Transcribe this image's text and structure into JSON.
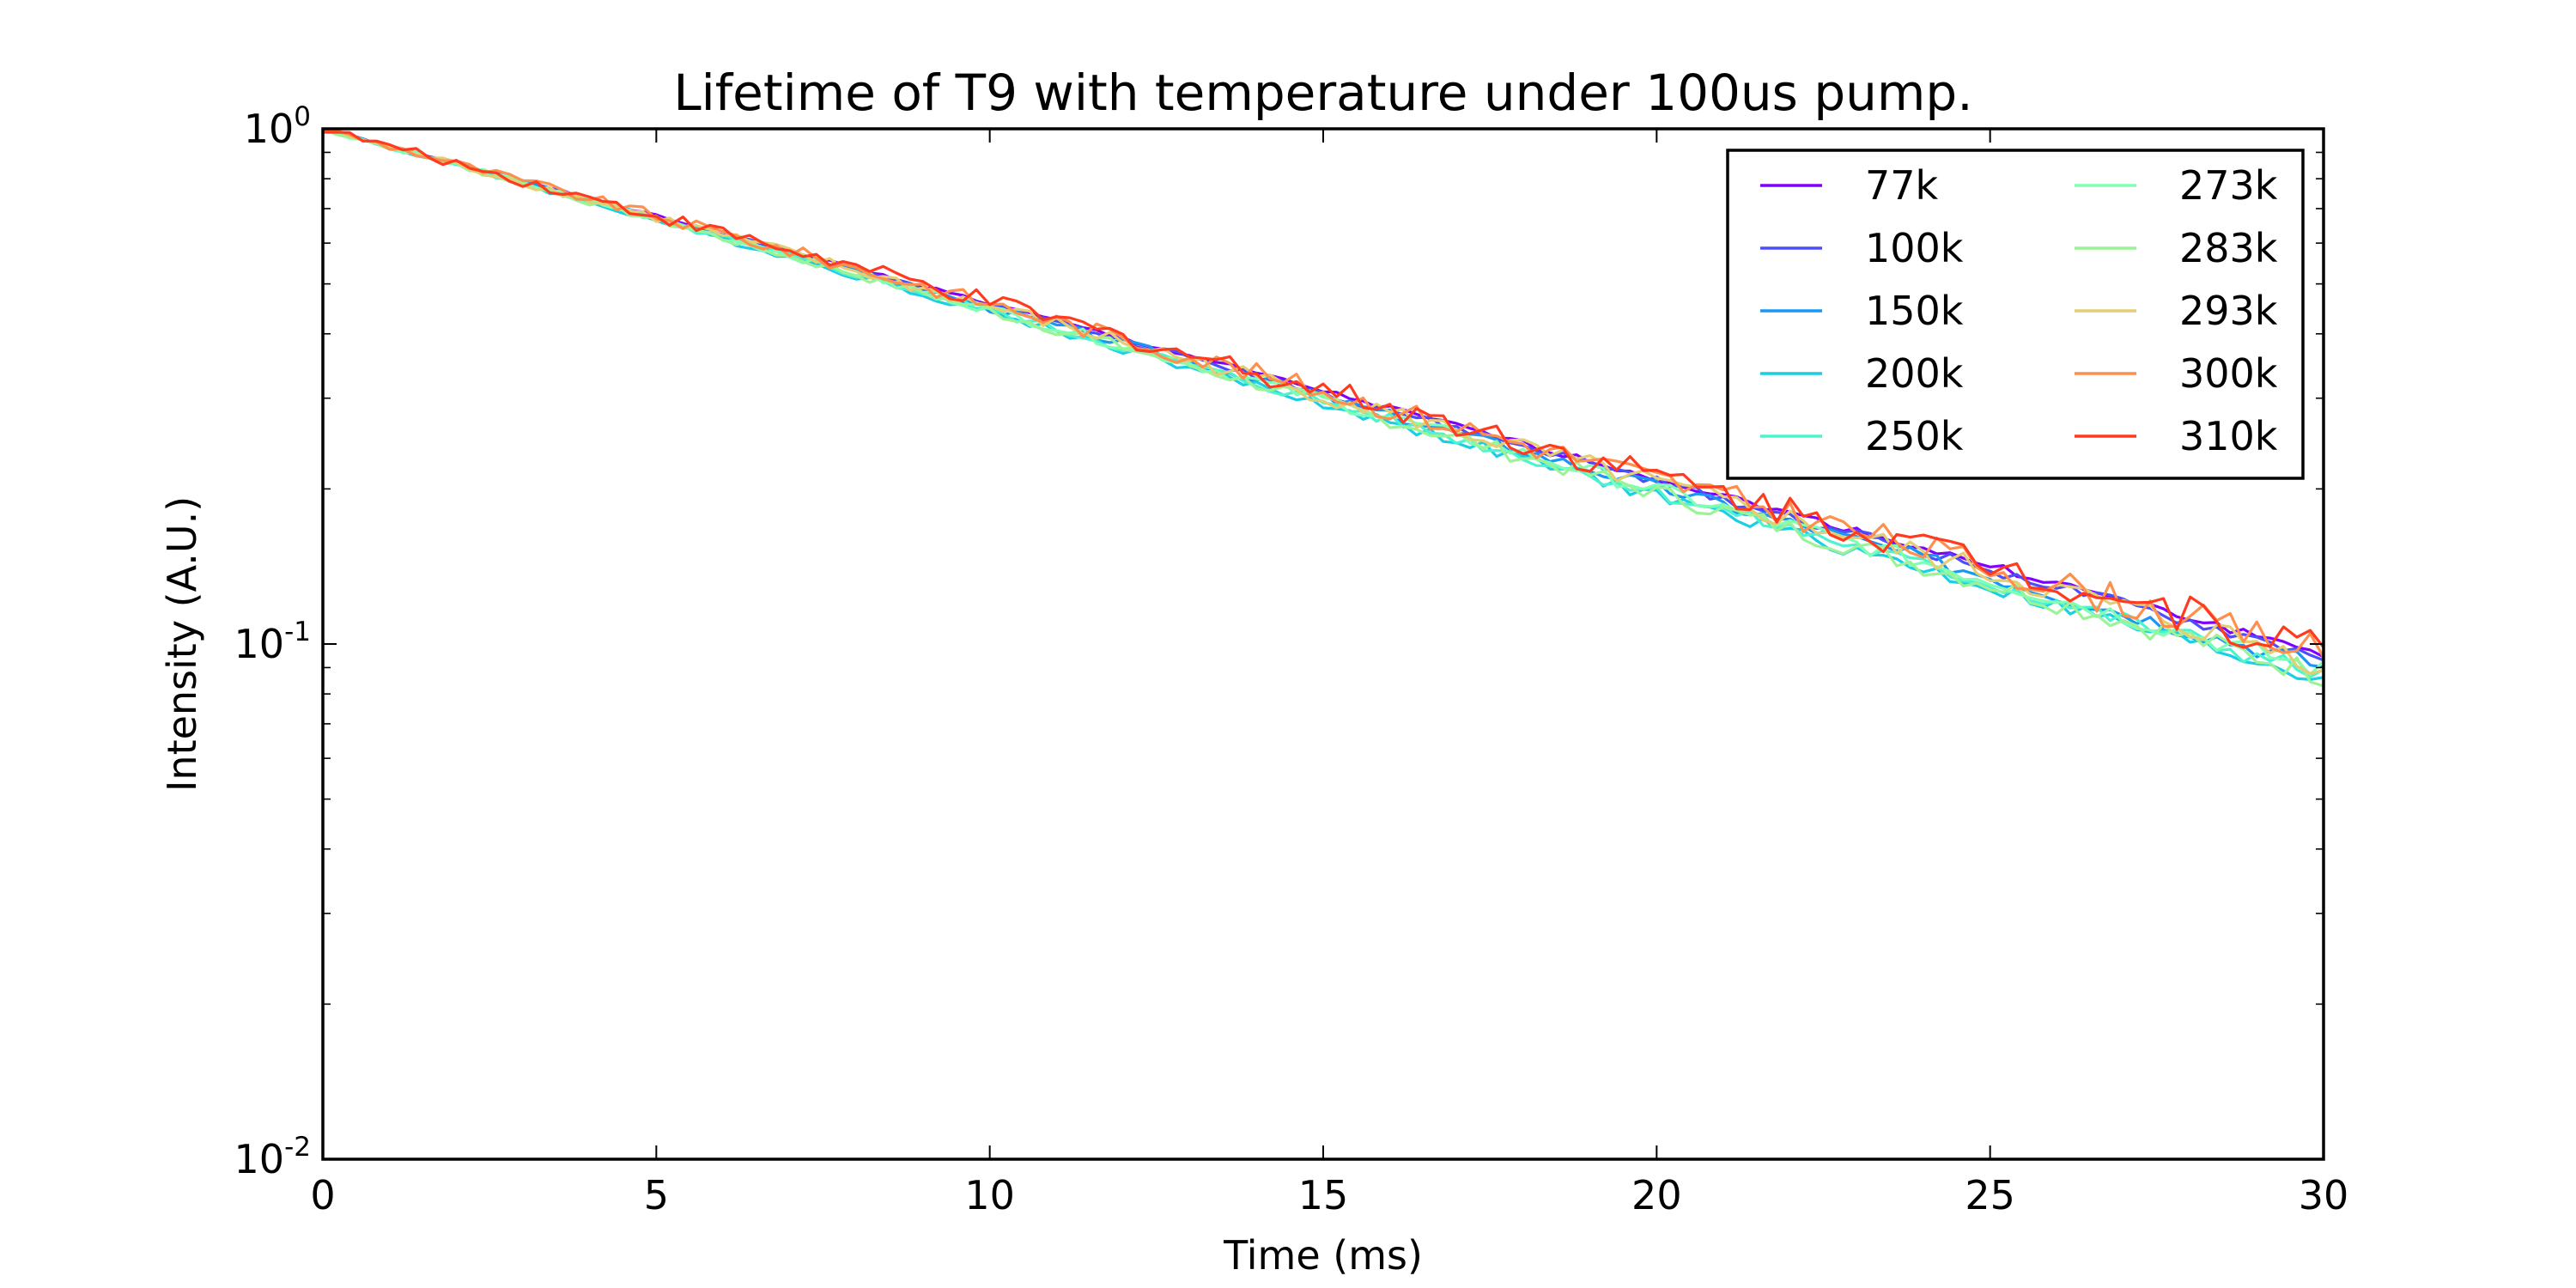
{
  "chart_data": {
    "type": "line",
    "title": "Lifetime of T9 with temperature under 100us pump.",
    "xlabel": "Time (ms)",
    "ylabel": "Intensity (A.U.)",
    "xlim": [
      0,
      30
    ],
    "ylim": [
      0.01,
      1
    ],
    "yscale": "log",
    "grid": false,
    "legend_position": "top-right",
    "legend_columns": 2,
    "x_ticks": [
      "0",
      "5",
      "10",
      "15",
      "20",
      "25",
      "30"
    ],
    "y_ticks": [
      {
        "base": "10",
        "exp": "-2",
        "value": 0.01
      },
      {
        "base": "10",
        "exp": "-1",
        "value": 0.1
      },
      {
        "base": "10",
        "exp": "0",
        "value": 1
      }
    ],
    "series": [
      {
        "name": "77k",
        "color": "#8000ff",
        "tau_ms": 12.8,
        "noise": 0.01
      },
      {
        "name": "100k",
        "color": "#4d4dfc",
        "tau_ms": 12.7,
        "noise": 0.014
      },
      {
        "name": "150k",
        "color": "#1a96f3",
        "tau_ms": 12.5,
        "noise": 0.02
      },
      {
        "name": "200k",
        "color": "#1acee3",
        "tau_ms": 12.2,
        "noise": 0.02
      },
      {
        "name": "250k",
        "color": "#4df3ce",
        "tau_ms": 12.3,
        "noise": 0.022
      },
      {
        "name": "273k",
        "color": "#80ffb4",
        "tau_ms": 12.4,
        "noise": 0.024
      },
      {
        "name": "283k",
        "color": "#9cf397",
        "tau_ms": 12.3,
        "noise": 0.028
      },
      {
        "name": "293k",
        "color": "#e3ce73",
        "tau_ms": 12.6,
        "noise": 0.034
      },
      {
        "name": "300k",
        "color": "#ff8f4d",
        "tau_ms": 12.8,
        "noise": 0.04
      },
      {
        "name": "310k",
        "color": "#ff3a1e",
        "tau_ms": 12.9,
        "noise": 0.044
      }
    ]
  }
}
